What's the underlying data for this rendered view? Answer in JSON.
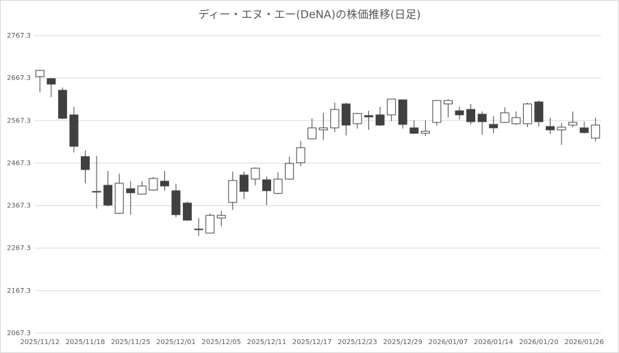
{
  "chart_data": {
    "type": "candlestick",
    "title": "ディー・エヌ・エー(DeNA)の株価推移(日足)",
    "categories": [
      "2025/11/12",
      null,
      null,
      null,
      "2025/11/18",
      null,
      null,
      null,
      "2025/11/25",
      null,
      null,
      null,
      "2025/12/01",
      null,
      null,
      null,
      "2025/12/05",
      null,
      null,
      null,
      "2025/12/11",
      null,
      null,
      null,
      "2025/12/17",
      null,
      null,
      null,
      "2025/12/23",
      null,
      null,
      null,
      "2025/12/29",
      null,
      null,
      null,
      "2026/01/07",
      null,
      null,
      null,
      "2026/01/14",
      null,
      null,
      null,
      "2026/01/20",
      null,
      null,
      null,
      "2026/01/26",
      null
    ],
    "open": [
      2670.8,
      2666.0,
      2638.7,
      2580.8,
      2482.7,
      2400.7,
      2415.1,
      2349.2,
      2407.1,
      2394.2,
      2403.9,
      2424.8,
      2402.3,
      2373.4,
      2312.2,
      2302.6,
      2338.0,
      2374.9,
      2439.2,
      2429.6,
      2428.0,
      2396.0,
      2429.6,
      2468.2,
      2524.5,
      2545.4,
      2550.2,
      2606.5,
      2559.9,
      2579.2,
      2580.8,
      2580.8,
      2616.2,
      2550.2,
      2537.4,
      2563.1,
      2606.5,
      2590.4,
      2593.6,
      2582.4,
      2558.3,
      2563.1,
      2559.9,
      2559.9,
      2611.3,
      2553.4,
      2545.4,
      2556.7,
      2550.2,
      2526.1
    ],
    "high": [
      2686.9,
      2667.6,
      2645.1,
      2600.1,
      2497.2,
      2484.3,
      2448.9,
      2442.5,
      2424.8,
      2424.8,
      2434.4,
      2448.9,
      2418.4,
      2376.6,
      2338.0,
      2349.2,
      2355.6,
      2447.3,
      2447.3,
      2456.9,
      2436.0,
      2445.7,
      2482.7,
      2519.7,
      2572.7,
      2585.6,
      2609.7,
      2609.7,
      2585.6,
      2590.4,
      2600.1,
      2617.8,
      2616.2,
      2567.9,
      2567.9,
      2614.6,
      2617.8,
      2600.1,
      2606.5,
      2588.8,
      2577.6,
      2598.5,
      2588.8,
      2609.7,
      2614.6,
      2574.3,
      2561.5,
      2588.8,
      2564.7,
      2574.3
    ],
    "low": [
      2633.8,
      2622.6,
      2571.1,
      2492.3,
      2420.0,
      2360.5,
      2365.3,
      2347.6,
      2346.0,
      2392.6,
      2402.3,
      2402.3,
      2339.6,
      2331.5,
      2296.2,
      2302.6,
      2318.7,
      2357.2,
      2383.0,
      2415.1,
      2368.5,
      2394.2,
      2428.0,
      2460.2,
      2522.9,
      2521.3,
      2540.6,
      2532.5,
      2548.6,
      2545.4,
      2555.1,
      2566.3,
      2548.6,
      2535.7,
      2530.9,
      2555.1,
      2574.3,
      2569.5,
      2558.3,
      2534.1,
      2537.4,
      2561.5,
      2556.7,
      2551.8,
      2553.4,
      2535.7,
      2510.0,
      2551.8,
      2537.4,
      2518.1
    ],
    "close": [
      2685.3,
      2653.1,
      2572.7,
      2506.8,
      2452.1,
      2399.1,
      2368.5,
      2420.0,
      2397.5,
      2413.5,
      2431.2,
      2413.5,
      2346.0,
      2333.1,
      2310.6,
      2344.4,
      2344.4,
      2426.4,
      2400.7,
      2455.3,
      2402.3,
      2429.6,
      2466.6,
      2503.6,
      2550.2,
      2550.2,
      2593.6,
      2556.7,
      2584.0,
      2576.0,
      2556.7,
      2617.8,
      2558.3,
      2537.4,
      2542.2,
      2614.6,
      2614.6,
      2580.8,
      2564.7,
      2564.7,
      2550.2,
      2585.6,
      2574.3,
      2606.5,
      2564.7,
      2545.4,
      2551.8,
      2563.1,
      2539.0,
      2556.7
    ],
    "up_color": "#ffffff",
    "down_color": "#404040",
    "edge_color": "#404040",
    "ylim": [
      2067.3,
      2767.3
    ],
    "yticks": [
      2067.3,
      2167.3,
      2267.3,
      2367.3,
      2467.3,
      2567.3,
      2667.3,
      2767.3
    ],
    "grid": true
  }
}
